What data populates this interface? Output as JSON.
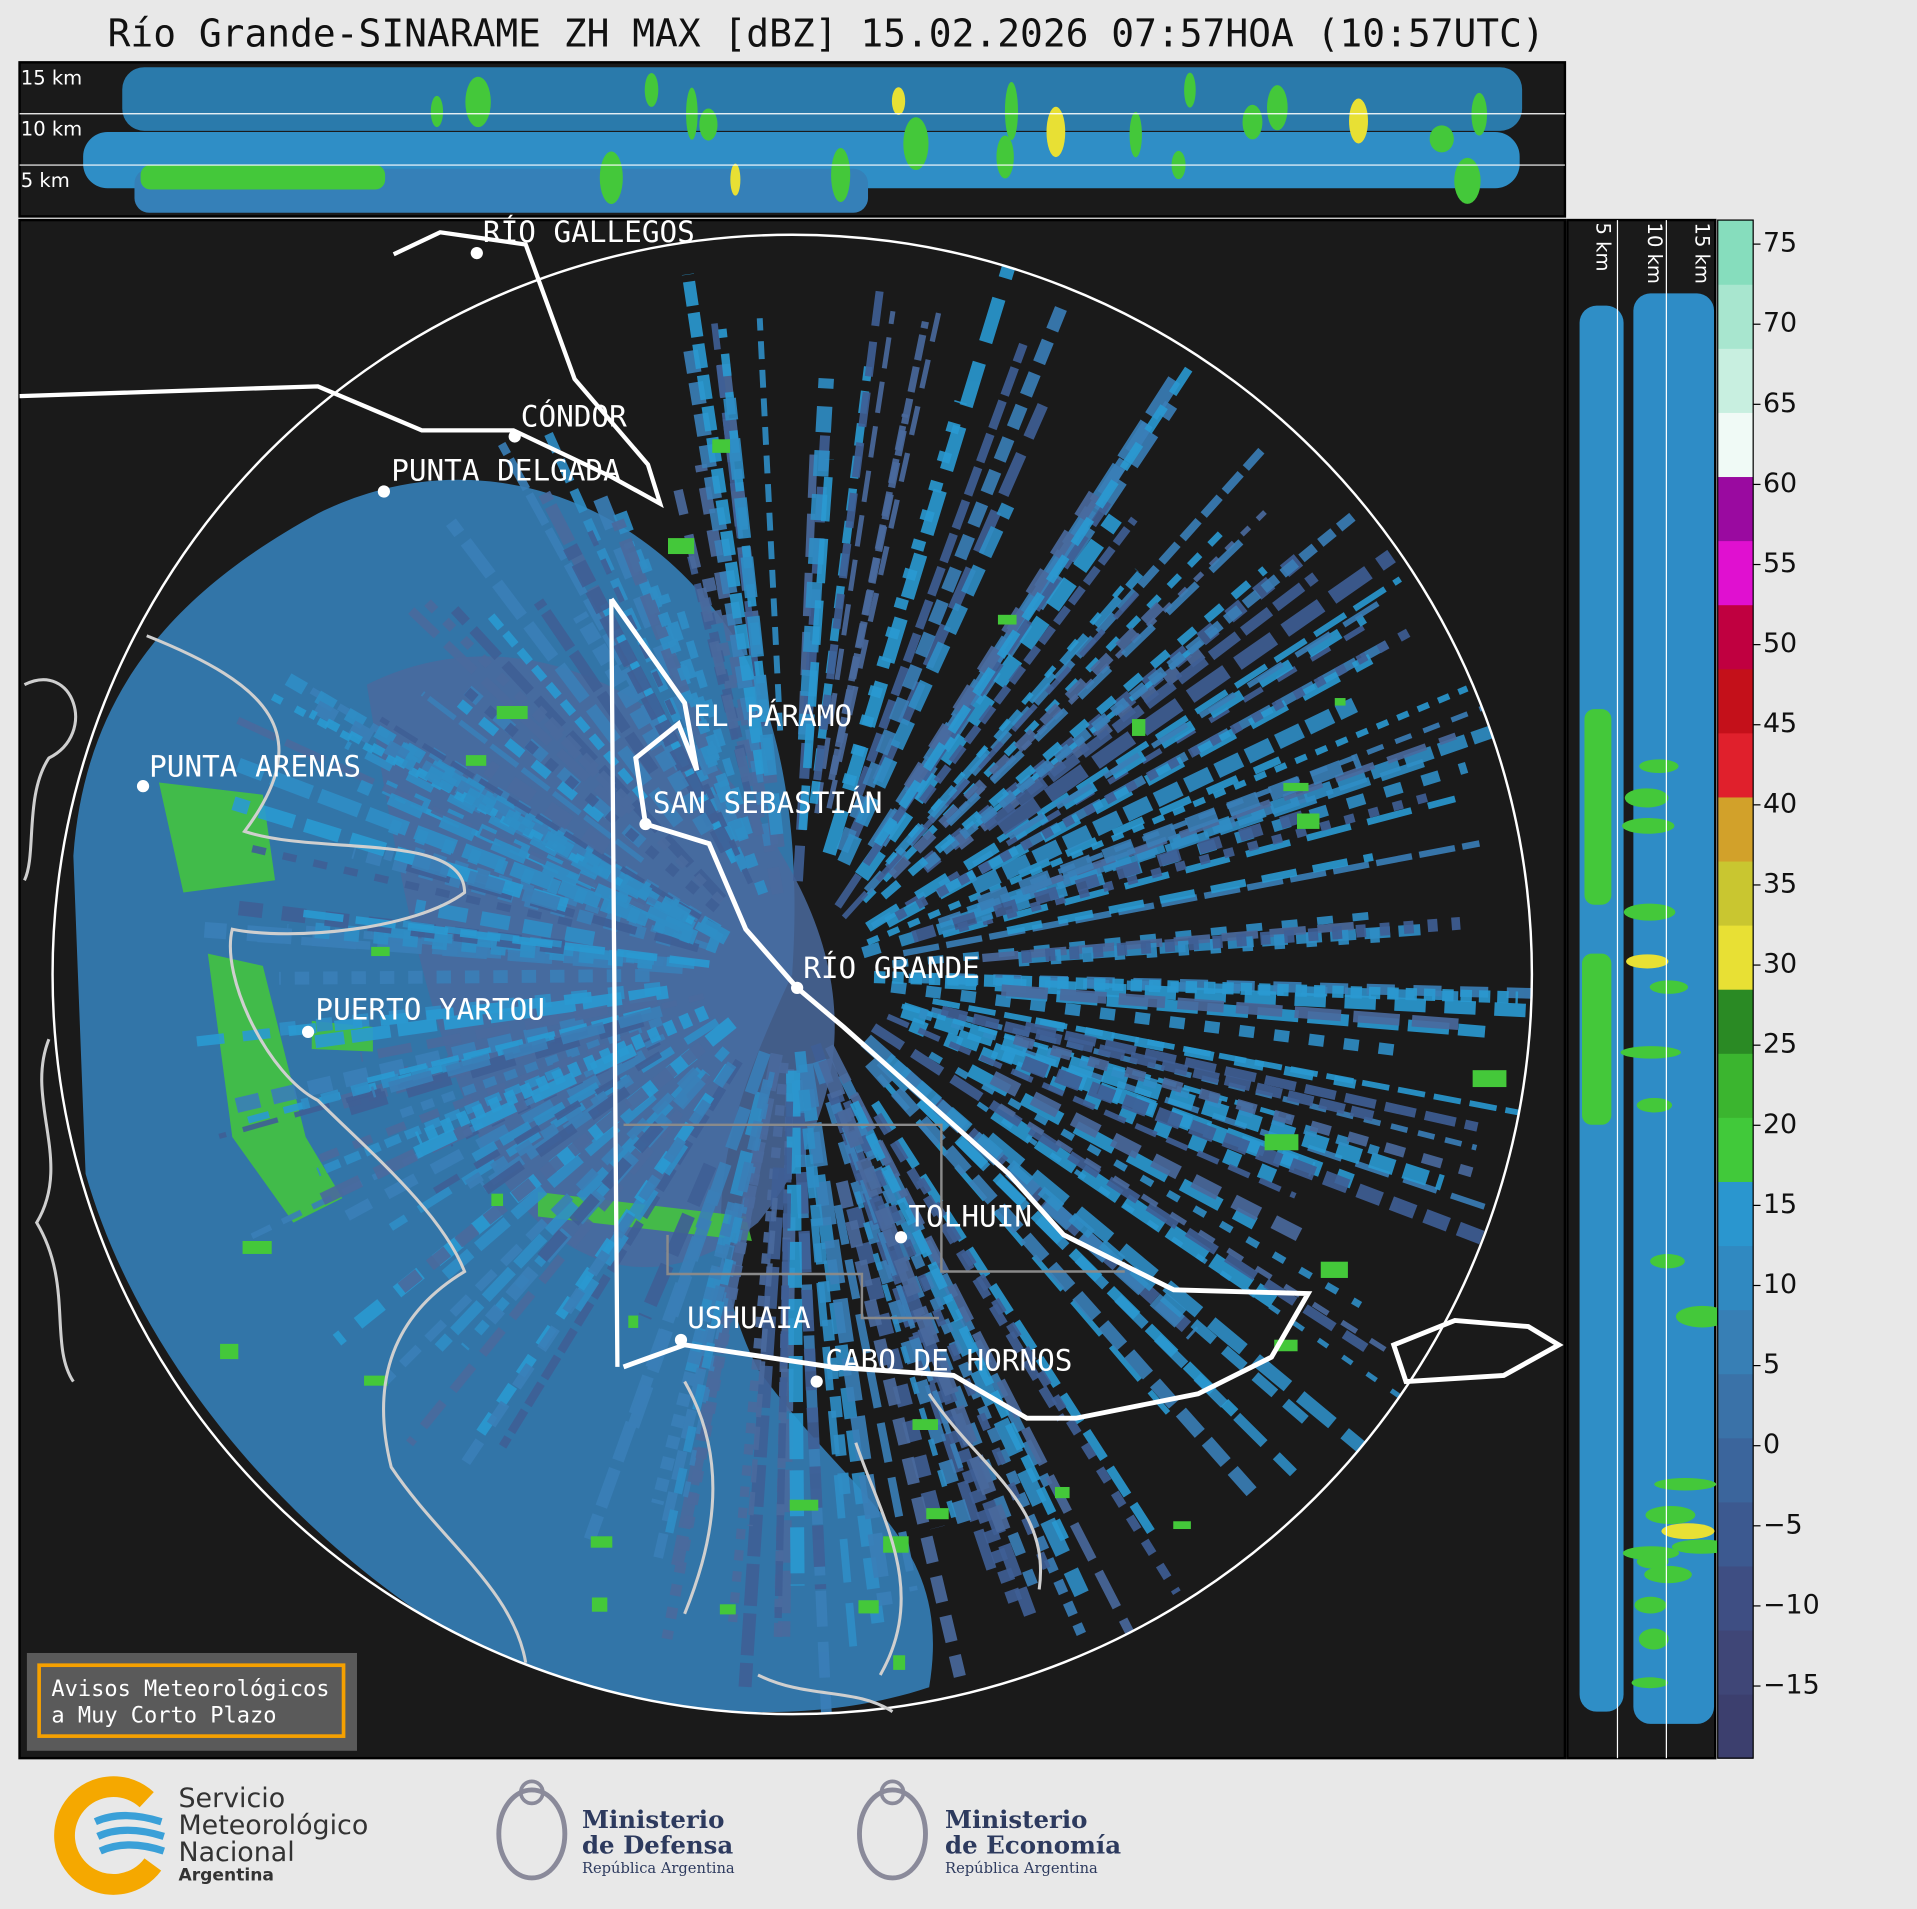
{
  "title": "Río Grande-SINARAME ZH MAX [dBZ] 15.02.2026 07:57HOA (10:57UTC)",
  "top_panel": {
    "height_labels": [
      "15 km",
      "10 km",
      "5 km"
    ]
  },
  "side_panel": {
    "height_labels": [
      "5 km",
      "10 km",
      "15 km"
    ]
  },
  "map": {
    "cities": [
      "RÍO GALLEGOS",
      "CÓNDOR",
      "PUNTA DELGADA",
      "EL PÁRAMO",
      "SAN SEBASTIÁN",
      "PUNTA ARENAS",
      "RÍO GRANDE",
      "PUERTO YARTOU",
      "TOLHUIN",
      "USHUAIA",
      "CABO DE HORNOS"
    ]
  },
  "colorbar": {
    "lim": [
      -19.5,
      76.5
    ],
    "ticks": [
      75,
      70,
      65,
      60,
      55,
      50,
      45,
      40,
      35,
      30,
      25,
      20,
      15,
      10,
      5,
      0,
      {
        "value": -5,
        "label": "−5"
      },
      {
        "value": -10,
        "label": "−10"
      },
      {
        "value": -15,
        "label": "−15"
      }
    ],
    "colors": [
      "#3c3f6e",
      "#3f4677",
      "#3e4e83",
      "#3c5990",
      "#3b659c",
      "#3a72a8",
      "#377fb5",
      "#3089c1",
      "#2a96cf",
      "#41c93a",
      "#3bb52f",
      "#2a8a24",
      "#e8e034",
      "#c9c630",
      "#d2a12a",
      "#e0202c",
      "#c4101a",
      "#c00040",
      "#e010d0",
      "#9a0aa0",
      "#f0faf6",
      "#c8efe0",
      "#a8e6cf",
      "#86ddbd"
    ]
  },
  "notice": {
    "lines": [
      "Avisos Meteorológicos",
      "a Muy Corto Plazo"
    ]
  },
  "footer": {
    "smn": {
      "lines": [
        "Servicio",
        "Meteorológico",
        "Nacional"
      ],
      "country": "Argentina"
    },
    "defensa": {
      "lines": [
        "Ministerio",
        "de Defensa"
      ],
      "subtitle": "República Argentina"
    },
    "economia": {
      "lines": [
        "Ministerio",
        "de Economía"
      ],
      "subtitle": "República Argentina"
    }
  }
}
